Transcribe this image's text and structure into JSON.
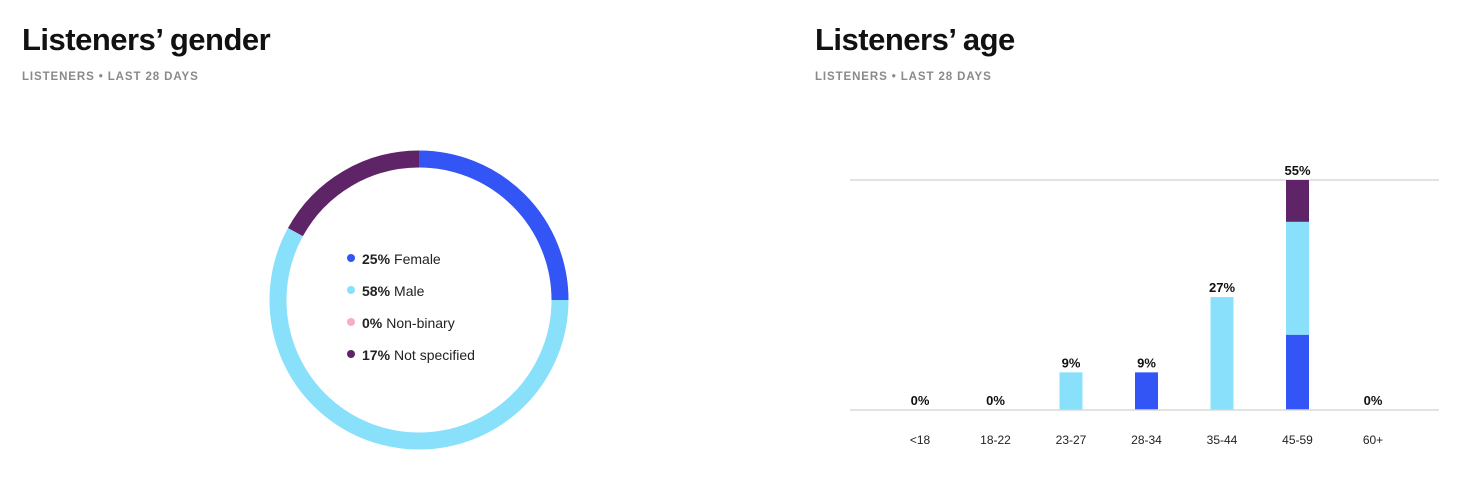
{
  "gender": {
    "title": "Listeners’ gender",
    "subtitle": "LISTENERS • LAST 28 DAYS"
  },
  "age": {
    "title": "Listeners’ age",
    "subtitle": "LISTENERS • LAST 28 DAYS"
  },
  "chart_data": [
    {
      "type": "pie",
      "variant": "donut",
      "title": "Listeners’ gender",
      "categories": [
        "Female",
        "Male",
        "Non-binary",
        "Not specified"
      ],
      "values": [
        25,
        58,
        0,
        17
      ],
      "labels": [
        "25%",
        "58%",
        "0%",
        "17%"
      ],
      "colors": [
        "#3355f5",
        "#88e0fb",
        "#f5aec4",
        "#5e2467"
      ],
      "start_angle_deg": 0,
      "direction": "clockwise",
      "legend_position": "center"
    },
    {
      "type": "bar",
      "stacked": true,
      "title": "Listeners’ age",
      "categories": [
        "<18",
        "18-22",
        "23-27",
        "28-34",
        "35-44",
        "45-59",
        "60+"
      ],
      "totals": [
        0,
        0,
        9,
        9,
        27,
        55,
        0
      ],
      "total_labels": [
        "0%",
        "0%",
        "9%",
        "9%",
        "27%",
        "55%",
        "0%"
      ],
      "series": [
        {
          "values": [
            0,
            0,
            0,
            9,
            0,
            18,
            0
          ],
          "color": "#3355f5"
        },
        {
          "values": [
            0,
            0,
            9,
            0,
            27,
            27,
            0
          ],
          "color": "#88e0fb"
        },
        {
          "values": [
            0,
            0,
            0,
            0,
            0,
            0,
            0
          ],
          "color": "#f5aec4"
        },
        {
          "values": [
            0,
            0,
            0,
            0,
            0,
            10,
            0
          ],
          "color": "#5e2467"
        }
      ],
      "ylim": [
        0,
        55
      ],
      "grid": true
    }
  ]
}
